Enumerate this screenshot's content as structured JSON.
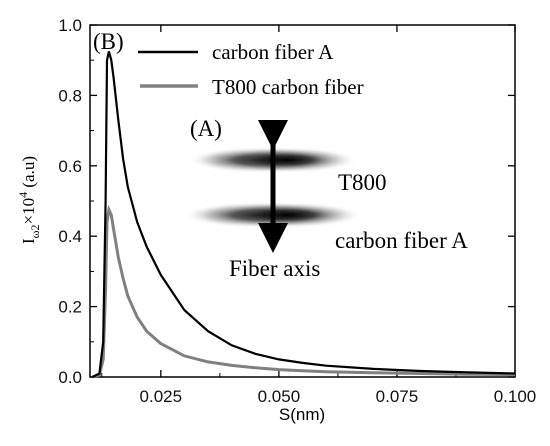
{
  "chart_data": {
    "type": "line",
    "panel_label": "(B)",
    "xlabel": "S(nm)",
    "ylabel": {
      "base": "I",
      "sub": "ω2",
      "rest": "×10",
      "sup": "4",
      "unit": " (a.u)"
    },
    "xlim": [
      0.01,
      0.1
    ],
    "ylim": [
      0.0,
      1.0
    ],
    "x_ticks": [
      0.025,
      0.05,
      0.075,
      0.1
    ],
    "x_tick_labels": [
      "0.025",
      "0.050",
      "0.075",
      "0.100"
    ],
    "y_ticks": [
      0.0,
      0.2,
      0.4,
      0.6,
      0.8,
      1.0
    ],
    "y_tick_labels": [
      "0.0",
      "0.2",
      "0.4",
      "0.6",
      "0.8",
      "1.0"
    ],
    "grid": false,
    "legend_position": "top",
    "series": [
      {
        "name": "carbon fiber A",
        "color": "#000000",
        "x": [
          0.0105,
          0.012,
          0.0128,
          0.0133,
          0.0136,
          0.014,
          0.0145,
          0.015,
          0.016,
          0.017,
          0.018,
          0.02,
          0.022,
          0.025,
          0.03,
          0.035,
          0.04,
          0.045,
          0.05,
          0.055,
          0.06,
          0.07,
          0.08,
          0.09,
          0.1
        ],
        "y": [
          0.0,
          0.01,
          0.1,
          0.5,
          0.9,
          0.925,
          0.9,
          0.85,
          0.73,
          0.62,
          0.54,
          0.44,
          0.37,
          0.29,
          0.19,
          0.13,
          0.09,
          0.066,
          0.05,
          0.04,
          0.032,
          0.023,
          0.017,
          0.013,
          0.01
        ]
      },
      {
        "name": "T800 carbon fiber",
        "color": "#808080",
        "x": [
          0.0105,
          0.012,
          0.0128,
          0.0133,
          0.0136,
          0.014,
          0.0145,
          0.015,
          0.016,
          0.017,
          0.018,
          0.02,
          0.022,
          0.025,
          0.03,
          0.035,
          0.04,
          0.045,
          0.05,
          0.055,
          0.06,
          0.07,
          0.08,
          0.09,
          0.1
        ],
        "y": [
          0.0,
          0.005,
          0.05,
          0.25,
          0.44,
          0.475,
          0.46,
          0.42,
          0.34,
          0.28,
          0.23,
          0.17,
          0.13,
          0.095,
          0.06,
          0.043,
          0.033,
          0.026,
          0.021,
          0.018,
          0.015,
          0.012,
          0.01,
          0.008,
          0.007
        ]
      }
    ],
    "inset": {
      "label": "(A)",
      "arrow_label": "Fiber axis",
      "pattern_labels": [
        "T800",
        "carbon fiber A"
      ]
    }
  }
}
